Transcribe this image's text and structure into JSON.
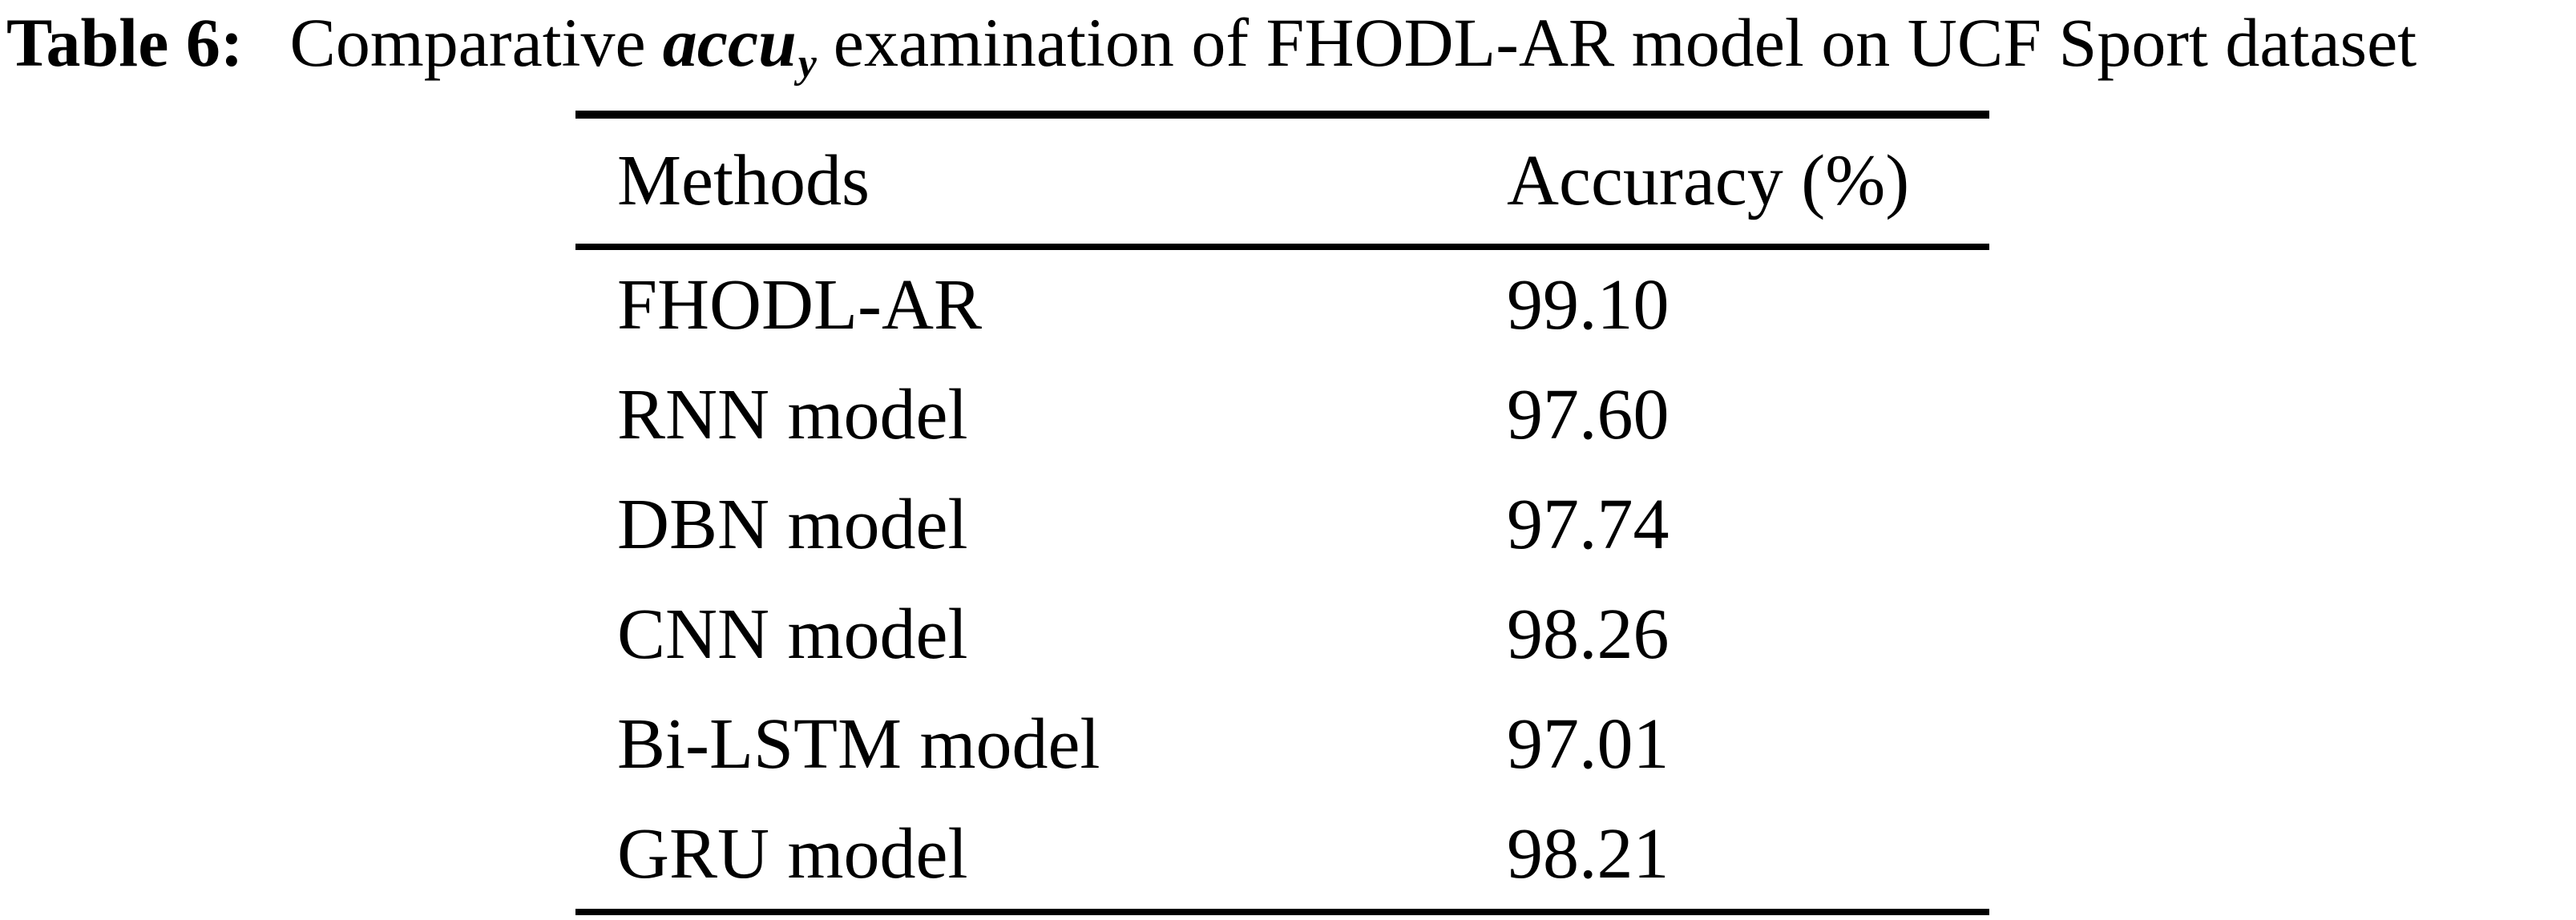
{
  "page": {
    "background_color": "#ffffff",
    "text_color": "#000000"
  },
  "caption": {
    "label": "Table 6:",
    "text_before": "Comparative",
    "metric": "accu",
    "metric_subscript": "y",
    "text_after": "examination of FHODL-AR model on UCF Sport dataset"
  },
  "table": {
    "columns": [
      "Methods",
      "Accuracy (%)"
    ],
    "rows": [
      {
        "method": "FHODL-AR",
        "accuracy": "99.10"
      },
      {
        "method": "RNN model",
        "accuracy": "97.60"
      },
      {
        "method": "DBN model",
        "accuracy": "97.74"
      },
      {
        "method": "CNN model",
        "accuracy": "98.26"
      },
      {
        "method": "Bi-LSTM model",
        "accuracy": "97.01"
      },
      {
        "method": "GRU model",
        "accuracy": "98.21"
      }
    ]
  },
  "chart_data": {
    "type": "table",
    "title": "Table 6: Comparative accu_y examination of FHODL-AR model on UCF Sport dataset",
    "columns": [
      "Methods",
      "Accuracy (%)"
    ],
    "categories": [
      "FHODL-AR",
      "RNN model",
      "DBN model",
      "CNN model",
      "Bi-LSTM model",
      "GRU model"
    ],
    "values": [
      99.1,
      97.6,
      97.74,
      98.26,
      97.01,
      98.21
    ]
  }
}
